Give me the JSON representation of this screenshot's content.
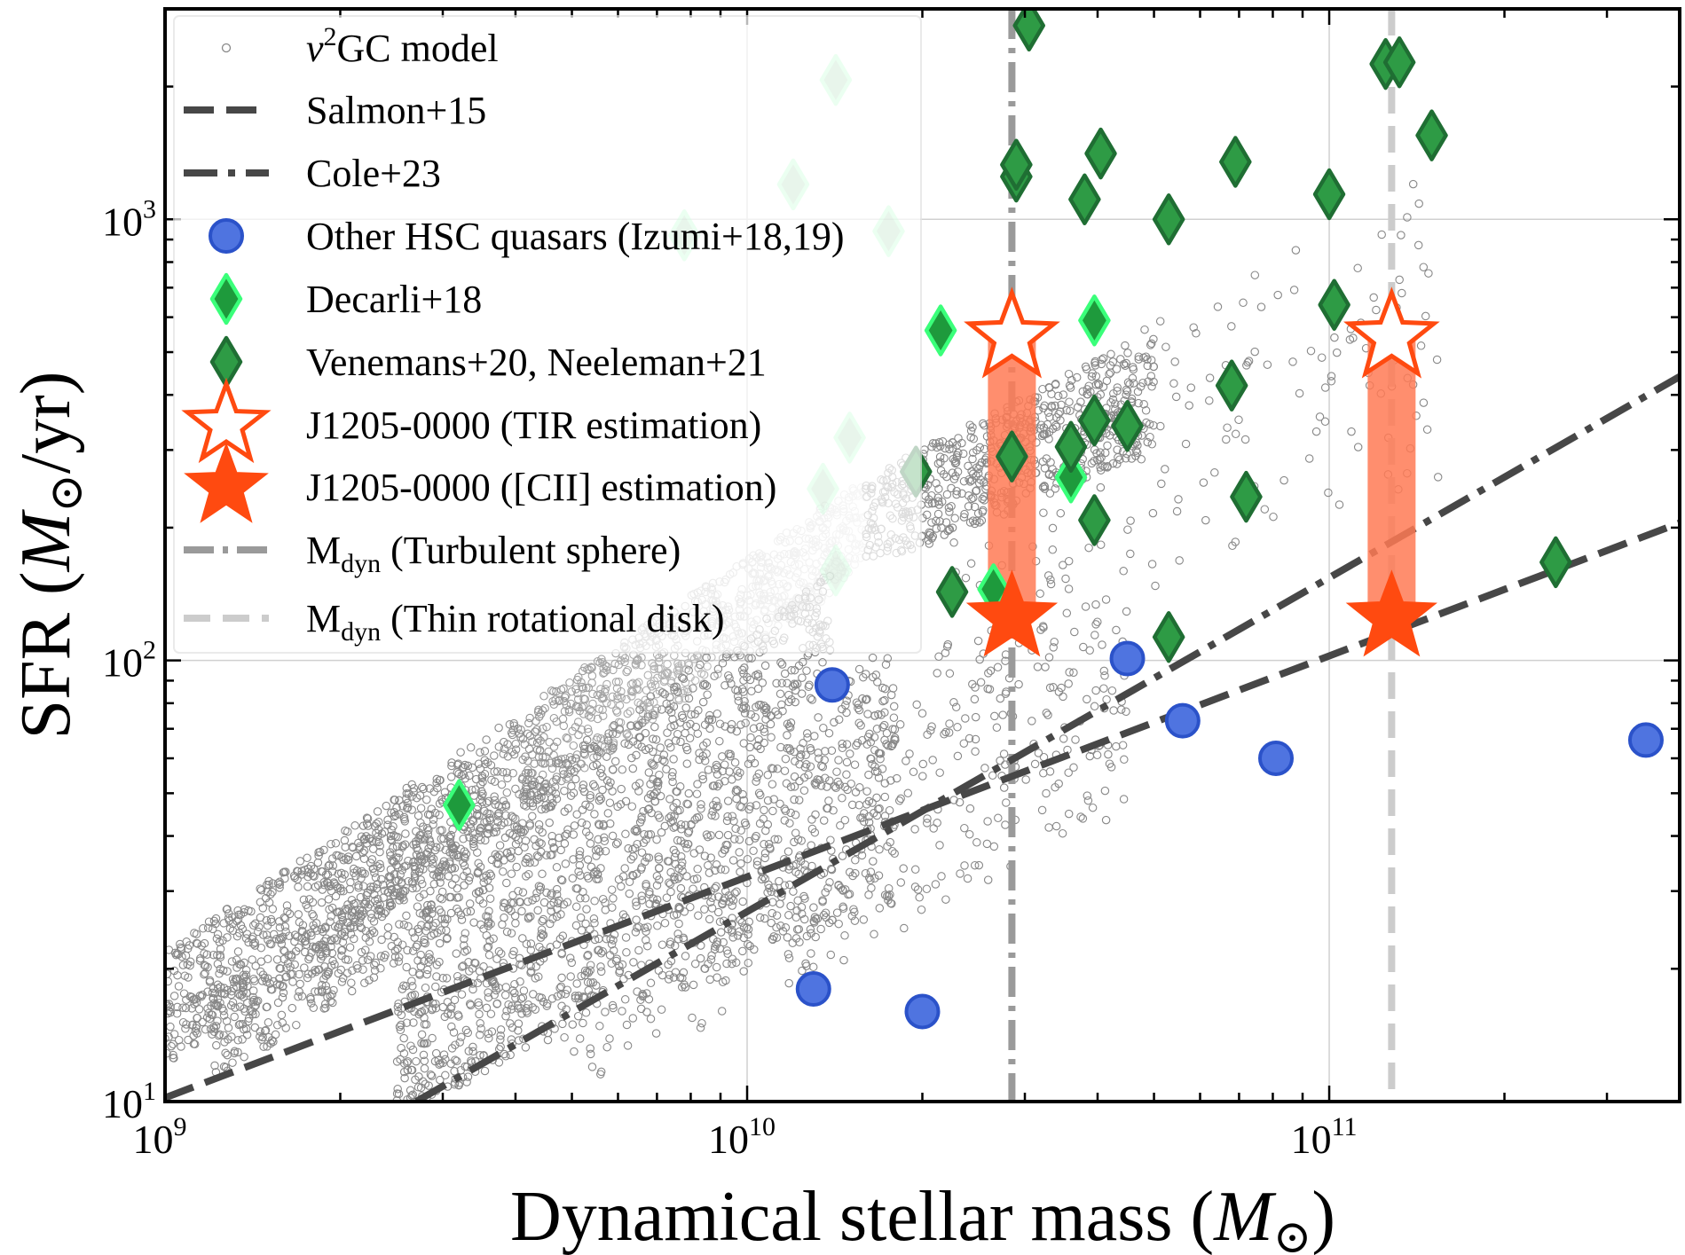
{
  "chart_data": {
    "type": "scatter",
    "xscale": "log",
    "yscale": "log",
    "xlim": [
      1000000000.0,
      400000000000.0
    ],
    "ylim": [
      10,
      3000
    ],
    "grid": true,
    "xlabel": "Dynamical stellar mass (M⊙)",
    "ylabel": "SFR (M⊙/yr)",
    "xlabel_parts": {
      "pre": "Dynamical stellar mass (",
      "var": "M",
      "sub": "⊙",
      "post": ")"
    },
    "ylabel_parts": {
      "pre": "SFR (",
      "var": "M",
      "sub": "⊙",
      "post": "/yr)"
    },
    "x_ticks": [
      {
        "value": 1000000000.0,
        "base": "10",
        "exp": "9"
      },
      {
        "value": 10000000000.0,
        "base": "10",
        "exp": "10"
      },
      {
        "value": 100000000000.0,
        "base": "10",
        "exp": "11"
      }
    ],
    "y_ticks": [
      {
        "value": 10,
        "base": "10",
        "exp": "1"
      },
      {
        "value": 100,
        "base": "10",
        "exp": "2"
      },
      {
        "value": 1000,
        "base": "10",
        "exp": "3"
      }
    ],
    "legend": {
      "position": "upper-left",
      "entries": [
        {
          "key": "model",
          "label_pre": "ν",
          "label_sup": "2",
          "label_post": "GC model"
        },
        {
          "key": "salmon",
          "label_pre": "Salmon+15"
        },
        {
          "key": "cole",
          "label_pre": "Cole+23"
        },
        {
          "key": "hsc",
          "label_pre": "Other HSC quasars (Izumi+18,19)"
        },
        {
          "key": "decarli",
          "label_pre": "Decarli+18"
        },
        {
          "key": "venemans",
          "label_pre": "Venemans+20, Neeleman+21"
        },
        {
          "key": "tir",
          "label_pre": "J1205-0000 (TIR estimation)"
        },
        {
          "key": "cii",
          "label_pre": "J1205-0000 ([CII] estimation)"
        },
        {
          "key": "turb",
          "label_pre": "M",
          "label_sub": "dyn",
          "label_post": " (Turbulent sphere)"
        },
        {
          "key": "disk",
          "label_pre": "M",
          "label_sub": "dyn",
          "label_post": " (Thin rotational disk)"
        }
      ]
    },
    "colors": {
      "model": "#888888",
      "salmon": "#474747",
      "cole": "#474747",
      "hsc": "#4f74e0",
      "hsc_edge": "#2b52c9",
      "decarli": "#1e9a3c",
      "decarli_edge": "#3aff7a",
      "venemans": "#2e9b45",
      "venemans_edge": "#1f6e33",
      "star": "#ff4a10",
      "bar": "#ff7a55",
      "turb": "#9a9a9a",
      "disk": "#cccccc"
    },
    "series": [
      {
        "name": "Salmon+15",
        "style": "dashed",
        "x": [
          1000000000.0,
          400000000000.0
        ],
        "y": [
          10.2,
          205
        ]
      },
      {
        "name": "Cole+23",
        "style": "dashdot",
        "x": [
          2700000000.0,
          400000000000.0
        ],
        "y": [
          10,
          440
        ]
      },
      {
        "name": "Other HSC quasars (Izumi+18,19)",
        "x": [
          14000000000.0,
          45000000000.0,
          56000000000.0,
          81000000000.0,
          350000000000.0,
          13000000000.0,
          20000000000.0
        ],
        "y": [
          88,
          101,
          73,
          60,
          66,
          18,
          16
        ]
      },
      {
        "name": "Decarli+18",
        "x": [
          14200000000.0,
          12000000000.0,
          7800000000.0,
          17500000000.0,
          21500000000.0,
          39500000000.0,
          15000000000.0,
          13500000000.0,
          36000000000.0,
          14200000000.0,
          26500000000.0,
          3200000000.0
        ],
        "y": [
          2070,
          1200,
          920,
          940,
          560,
          590,
          320,
          245,
          260,
          160,
          145,
          47
        ]
      },
      {
        "name": "Venemans+20, Neeleman+21",
        "x": [
          30500000000.0,
          29000000000.0,
          29000000000.0,
          38000000000.0,
          40500000000.0,
          53000000000.0,
          69000000000.0,
          100000000000.0,
          125000000000.0,
          132000000000.0,
          150000000000.0,
          102000000000.0,
          68000000000.0,
          28500000000.0,
          36000000000.0,
          39500000000.0,
          45000000000.0,
          19500000000.0,
          72000000000.0,
          39500000000.0,
          22500000000.0,
          53000000000.0,
          245000000000.0
        ],
        "y": [
          2750,
          1250,
          1330,
          1110,
          1410,
          1000,
          1350,
          1140,
          2250,
          2270,
          1550,
          640,
          420,
          290,
          305,
          350,
          340,
          268,
          235,
          208,
          143,
          113,
          167
        ]
      },
      {
        "name": "J1205-0000 (TIR estimation)",
        "x": [
          28500000000.0,
          128000000000.0
        ],
        "y": [
          540,
          540
        ]
      },
      {
        "name": "J1205-0000 ([CII] estimation)",
        "x": [
          28500000000.0,
          128000000000.0
        ],
        "y": [
          125,
          125
        ]
      },
      {
        "name": "Mdyn (Turbulent sphere)",
        "style": "vline-dashdot",
        "x": [
          28500000000.0
        ]
      },
      {
        "name": "Mdyn (Thin rotational disk)",
        "style": "vline-dashed",
        "x": [
          128000000000.0
        ]
      }
    ],
    "model_bands": [
      {
        "x0": 1000000000.0,
        "x1": 16000000000.0,
        "y0_low": 12,
        "y0_high": 22,
        "y1_low": 160,
        "y1_high": 260,
        "count": 1600,
        "fade": true
      },
      {
        "x0": 16000000000.0,
        "x1": 50000000000.0,
        "y0_low": 160,
        "y0_high": 260,
        "y1_low": 300,
        "y1_high": 560,
        "count": 600,
        "fade": false
      },
      {
        "x0": 1200000000.0,
        "x1": 14000000000.0,
        "y0_low": 11,
        "y0_high": 17,
        "y1_low": 90,
        "y1_high": 160,
        "count": 900,
        "fade": false
      },
      {
        "x0": 2500000000.0,
        "x1": 18000000000.0,
        "y0_low": 9.5,
        "y0_high": 20,
        "y1_low": 28,
        "y1_high": 110,
        "count": 1100,
        "fade": false
      },
      {
        "x0": 5000000000.0,
        "x1": 45000000000.0,
        "y0_low": 10,
        "y0_high": 45,
        "y1_low": 45,
        "y1_high": 150,
        "count": 450,
        "fade": false
      },
      {
        "x0": 20000000000.0,
        "x1": 155000000000.0,
        "y0_low": 90,
        "y0_high": 300,
        "y1_low": 250,
        "y1_high": 1300,
        "count": 200,
        "fade": false
      }
    ]
  }
}
